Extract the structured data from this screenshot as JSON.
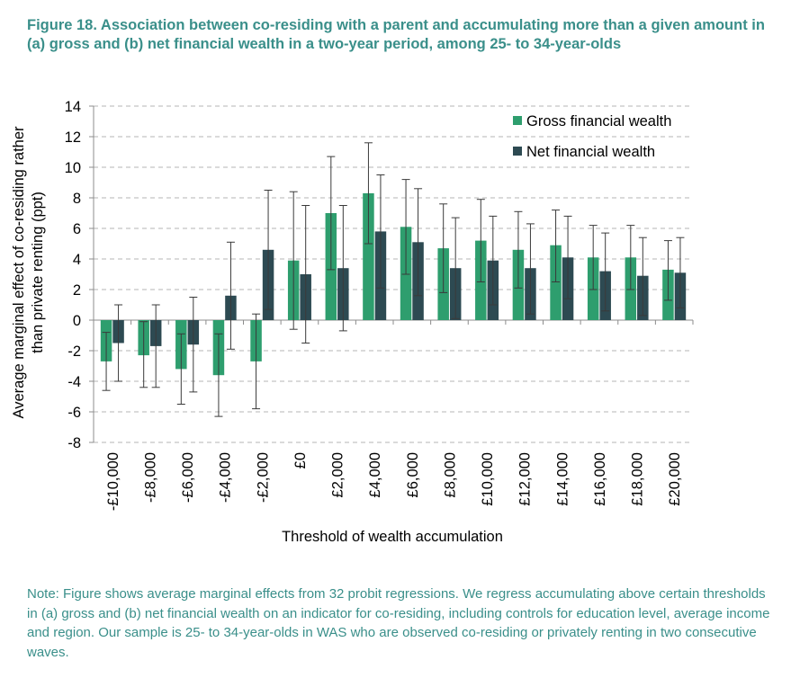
{
  "figure": {
    "title": "Figure 18. Association between co-residing with a parent and accumulating more than a given amount in (a) gross and (b) net financial wealth in a two-year period, among 25- to 34-year-olds",
    "note": "Note: Figure shows average marginal effects from 32 probit regressions. We regress accumulating above certain thresholds in (a) gross and (b) net financial wealth on an indicator for co-residing, including controls for education level, average income and region. Our sample is 25- to 34-year-olds in WAS who are observed co-residing or privately renting in two consecutive waves."
  },
  "chart_data": {
    "type": "bar",
    "title": "",
    "xlabel": "Threshold of wealth accumulation",
    "ylabel": "Average marginal effect of co-residing rather than private renting (ppt)",
    "ylim": [
      -8,
      14
    ],
    "yticks": [
      -8,
      -6,
      -4,
      -2,
      0,
      2,
      4,
      6,
      8,
      10,
      12,
      14
    ],
    "grid": true,
    "legend_position": "top-right",
    "categories": [
      "-£10,000",
      "-£8,000",
      "-£6,000",
      "-£4,000",
      "-£2,000",
      "£0",
      "£2,000",
      "£4,000",
      "£6,000",
      "£8,000",
      "£10,000",
      "£12,000",
      "£14,000",
      "£16,000",
      "£18,000",
      "£20,000"
    ],
    "series": [
      {
        "name": "Gross financial wealth",
        "color": "#2e9e6e",
        "values": [
          -2.7,
          -2.3,
          -3.2,
          -3.6,
          -2.7,
          null,
          7.0,
          8.3,
          6.1,
          4.7,
          5.2,
          4.6,
          4.9,
          4.1,
          4.1,
          3.3
        ],
        "ci_low": [
          -4.6,
          -4.4,
          -5.5,
          -6.3,
          -5.8,
          null,
          3.3,
          5.0,
          3.0,
          1.8,
          2.5,
          2.1,
          2.5,
          2.0,
          2.0,
          1.3
        ],
        "ci_high": [
          -0.8,
          -0.1,
          -0.9,
          -0.9,
          0.4,
          null,
          10.7,
          11.6,
          9.2,
          7.6,
          7.9,
          7.1,
          7.2,
          6.2,
          6.2,
          5.2
        ]
      },
      {
        "name": "Net financial wealth",
        "color": "#2d4a52",
        "values": [
          -1.5,
          -1.7,
          -1.6,
          1.6,
          4.6,
          3.0,
          3.4,
          5.8,
          5.1,
          3.4,
          3.9,
          3.4,
          4.1,
          3.2,
          2.9,
          3.1
        ],
        "ci_low": [
          -4.0,
          -4.4,
          -4.7,
          -1.9,
          0.7,
          -1.5,
          -0.7,
          2.1,
          1.6,
          0.1,
          1.0,
          0.4,
          1.4,
          0.6,
          0.3,
          0.8
        ],
        "ci_high": [
          1.0,
          1.0,
          1.5,
          5.1,
          8.5,
          7.5,
          7.5,
          9.5,
          8.6,
          6.7,
          6.8,
          6.3,
          6.8,
          5.7,
          5.4,
          5.4
        ]
      },
      {
        "name": "Gross financial wealth (£0)",
        "legend": false,
        "color": "#2e9e6e",
        "values": [
          null,
          null,
          null,
          null,
          null,
          3.9,
          null,
          null,
          null,
          null,
          null,
          null,
          null,
          null,
          null,
          null
        ],
        "ci_low": [
          null,
          null,
          null,
          null,
          null,
          -0.6,
          null,
          null,
          null,
          null,
          null,
          null,
          null,
          null,
          null,
          null
        ],
        "ci_high": [
          null,
          null,
          null,
          null,
          null,
          8.4,
          null,
          null,
          null,
          null,
          null,
          null,
          null,
          null,
          null,
          null
        ]
      }
    ]
  }
}
